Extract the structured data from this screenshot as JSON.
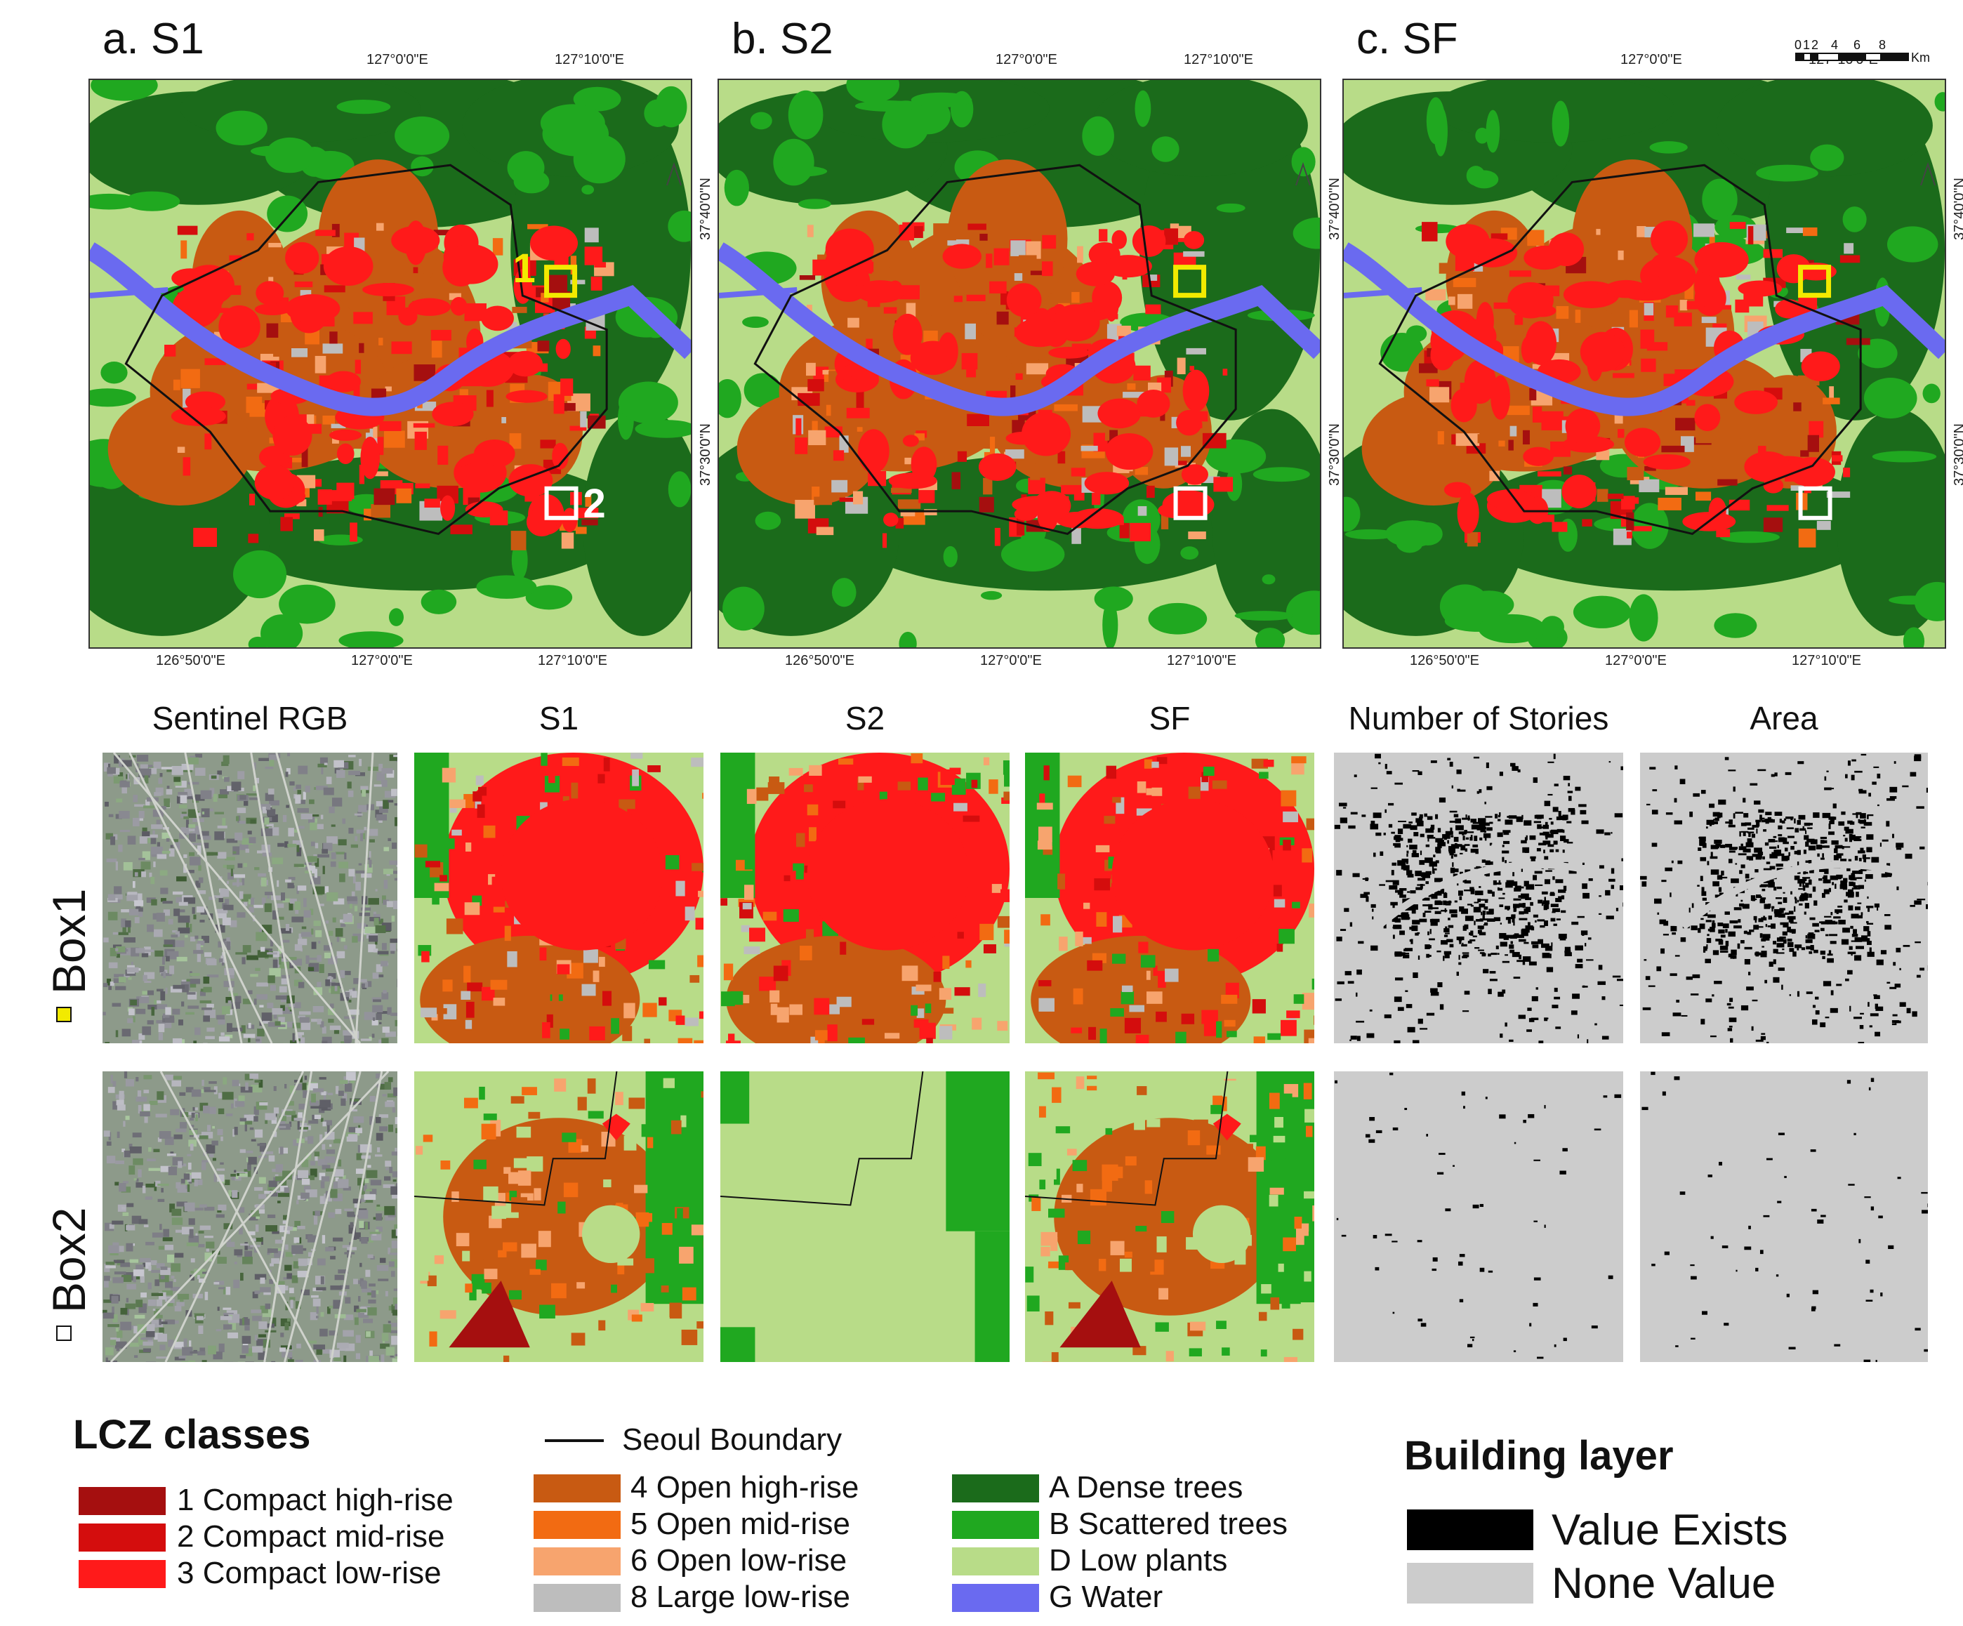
{
  "panels": [
    {
      "title": "a. S1",
      "box1_label": "1",
      "box2_label": "2"
    },
    {
      "title": "b. S2"
    },
    {
      "title": "c. SF"
    }
  ],
  "coords": {
    "lon_top_1": "127°0'0\"E",
    "lon_top_2": "127°10'0\"E",
    "lon_bottom_1": "126°50'0\"E",
    "lon_bottom_2": "127°0'0\"E",
    "lon_bottom_3": "127°10'0\"E",
    "lat_1": "37°40'0\"N",
    "lat_2": "37°30'0\"N"
  },
  "scale_bar": {
    "ticks": [
      "0",
      "1",
      "2",
      "4",
      "6",
      "8"
    ],
    "unit": "Km"
  },
  "grid": {
    "columns": [
      "Sentinel RGB",
      "S1",
      "S2",
      "SF",
      "Number of Stories",
      "Area"
    ],
    "rows": [
      "Box1",
      "Box2"
    ]
  },
  "lcz_legend": {
    "title": "LCZ classes",
    "boundary_label": "Seoul Boundary",
    "classes": [
      {
        "label": "1 Compact high-rise",
        "color": "#a50f0f"
      },
      {
        "label": "2 Compact mid-rise",
        "color": "#d40d0d"
      },
      {
        "label": "3 Compact low-rise",
        "color": "#ff1a1a"
      },
      {
        "label": "4 Open high-rise",
        "color": "#c85a12"
      },
      {
        "label": "5 Open mid-rise",
        "color": "#f26b12"
      },
      {
        "label": "6 Open low-rise",
        "color": "#f7a46e"
      },
      {
        "label": "8 Large low-rise",
        "color": "#bdbdbd"
      },
      {
        "label": "A Dense trees",
        "color": "#1b6b1b"
      },
      {
        "label": "B Scattered trees",
        "color": "#20a820"
      },
      {
        "label": "D Low plants",
        "color": "#b8dc88"
      },
      {
        "label": "G Water",
        "color": "#6a6af0"
      }
    ]
  },
  "building_legend": {
    "title": "Building layer",
    "items": [
      {
        "label": "Value Exists",
        "color": "#000000"
      },
      {
        "label": "None Value",
        "color": "#cccccc"
      }
    ]
  }
}
